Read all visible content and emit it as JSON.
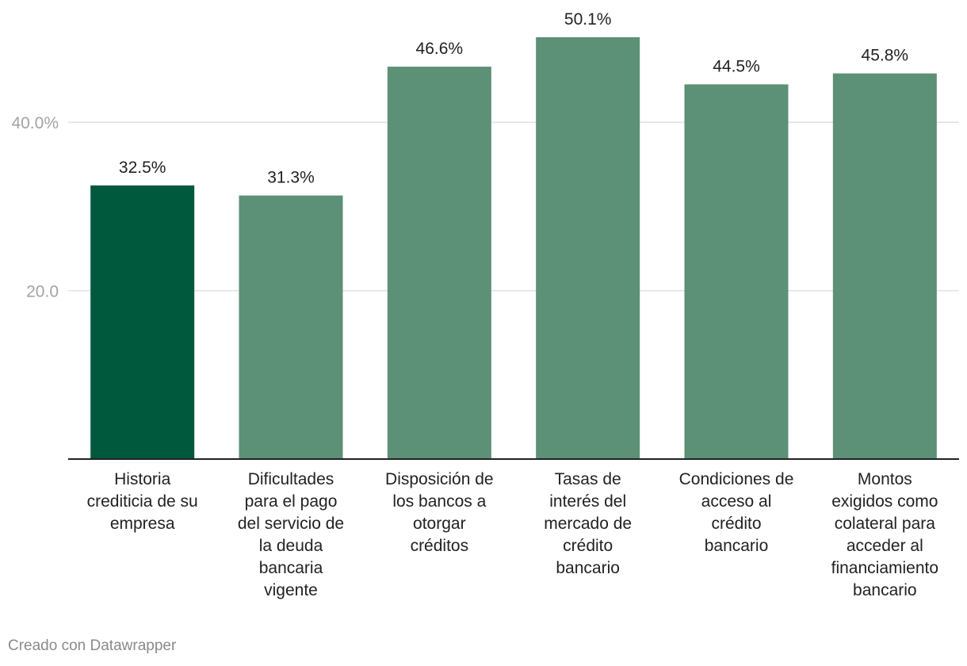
{
  "chart_data": {
    "type": "bar",
    "title": "",
    "xlabel": "",
    "ylabel": "",
    "ylim": [
      0,
      52
    ],
    "yticks": [
      {
        "value": 20,
        "label": "20.0"
      },
      {
        "value": 40,
        "label": "40.0%"
      }
    ],
    "categories": [
      "Historia crediticia de su empresa",
      "Dificultades para el pago del servicio de la deuda bancaria vigente",
      "Disposición de los bancos a otorgar créditos",
      "Tasas de interés del mercado de crédito bancario",
      "Condiciones de acceso al crédito bancario",
      "Montos exigidos como colateral para acceder al financiamiento bancario"
    ],
    "category_lines": [
      [
        "Historia",
        "crediticia de su",
        "empresa"
      ],
      [
        "Dificultades",
        "para el pago",
        "del servicio de",
        "la deuda",
        "bancaria",
        "vigente"
      ],
      [
        "Disposición de",
        "los bancos a",
        "otorgar",
        "créditos"
      ],
      [
        "Tasas de",
        "interés del",
        "mercado de",
        "crédito",
        "bancario"
      ],
      [
        "Condiciones de",
        "acceso al",
        "crédito",
        "bancario"
      ],
      [
        "Montos",
        "exigidos como",
        "colateral para",
        "acceder al",
        "financiamiento",
        "bancario"
      ]
    ],
    "values": [
      32.5,
      31.3,
      46.6,
      50.1,
      44.5,
      45.8
    ],
    "value_labels": [
      "32.5%",
      "31.3%",
      "46.6%",
      "50.1%",
      "44.5%",
      "45.8%"
    ],
    "highlight_index": 0,
    "colors": {
      "highlight": "#00583d",
      "default": "#5c9077",
      "grid": "#e1e1e1",
      "axis": "#222222"
    },
    "grid": true
  },
  "footer": {
    "credit": "Creado con Datawrapper"
  }
}
